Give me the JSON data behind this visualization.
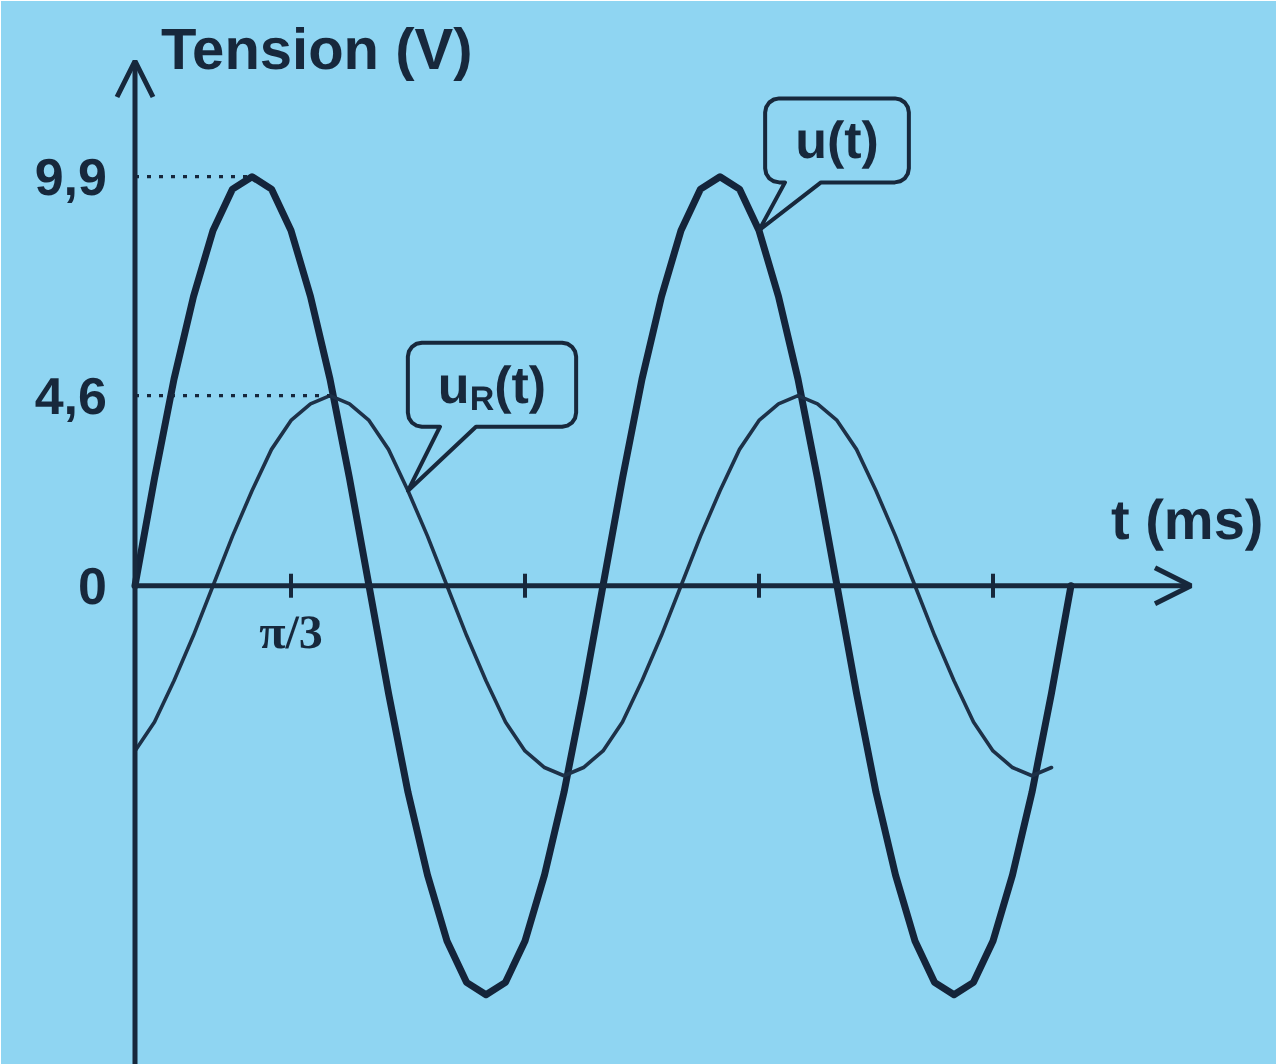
{
  "chart_data": {
    "type": "line",
    "xlabel": "t (ms)",
    "ylabel": "Tension (V)",
    "categories": [
      null,
      null,
      null,
      null,
      null,
      null,
      null,
      null,
      null,
      null,
      null,
      null,
      null,
      null,
      null,
      null,
      null,
      null,
      null,
      null,
      null,
      null,
      null,
      null,
      null,
      null,
      null,
      null,
      null,
      null,
      null,
      null,
      null,
      null,
      null,
      null,
      null,
      null,
      null,
      null,
      null,
      null,
      null,
      null,
      null,
      null,
      null,
      null,
      null
    ],
    "series": [
      {
        "name": "u(t)",
        "color": "#14243a",
        "values": [
          0,
          2.6,
          5.0,
          7.0,
          8.6,
          9.6,
          9.9,
          9.6,
          8.6,
          7.0,
          5.0,
          2.6,
          0,
          -2.6,
          -5.0,
          -7.0,
          -8.6,
          -9.6,
          -9.9,
          -9.6,
          -8.6,
          -7.0,
          -5.0,
          -2.6,
          0,
          2.6,
          5.0,
          7.0,
          8.6,
          9.6,
          9.9,
          9.6,
          8.6,
          7.0,
          5.0,
          2.6,
          0,
          -2.6,
          -5.0,
          -7.0,
          -8.6,
          -9.6,
          -9.9,
          -9.6,
          -8.6,
          -7.0,
          -5.0,
          -2.6,
          0
        ]
      },
      {
        "name": "u$_{R}$(t)",
        "color": "#1d3148",
        "values": [
          -4.0,
          -3.3,
          -2.3,
          -1.2,
          0,
          1.2,
          2.3,
          3.3,
          4.0,
          4.4,
          4.6,
          4.4,
          4.0,
          3.3,
          2.3,
          1.2,
          0,
          -1.2,
          -2.3,
          -3.3,
          -4.0,
          -4.4,
          -4.6,
          -4.4,
          -4.0,
          -3.3,
          -2.3,
          -1.2,
          0,
          1.2,
          2.3,
          3.3,
          4.0,
          4.4,
          4.6,
          4.4,
          4.0,
          3.3,
          2.3,
          1.2,
          0,
          -1.2,
          -2.3,
          -3.3,
          -4.0,
          -4.4,
          -4.6,
          -4.4,
          null
        ]
      }
    ],
    "ylim": [
      -11.6,
      12.7
    ],
    "yticks": [
      {
        "value": 0,
        "label": "0"
      },
      {
        "value": 4.6,
        "label": "4,6"
      },
      {
        "value": 9.9,
        "label": "9,9"
      }
    ],
    "annotations": [
      "π/3"
    ],
    "ref_lines": [
      {
        "axis": "y",
        "value": 9.9,
        "line_style": "dotted"
      },
      {
        "axis": "y",
        "value": 4.6,
        "line_style": "dotted"
      }
    ]
  }
}
